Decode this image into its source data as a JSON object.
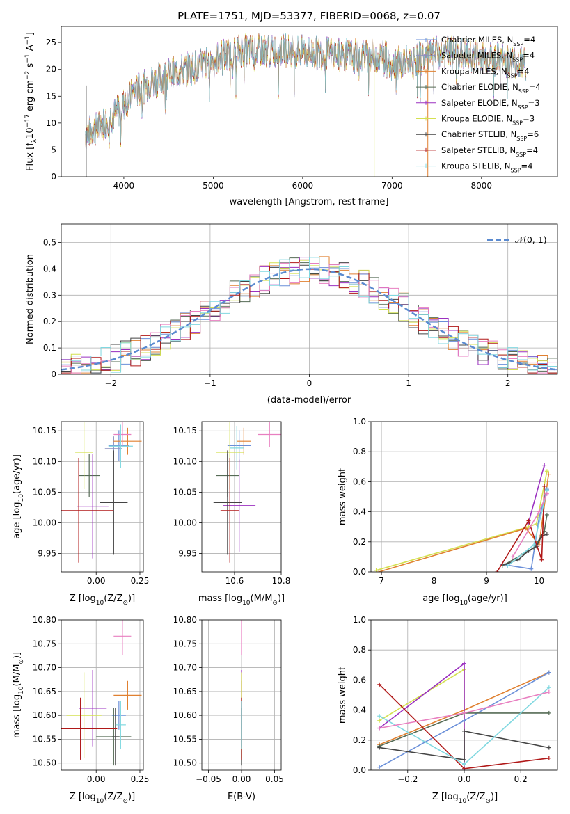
{
  "figure": {
    "title": "PLATE=1751, MJD=53377, FIBERID=0068, z=0.07"
  },
  "legend_labels": [
    {
      "name": "Chabrier MILES, N",
      "sub": "SSP",
      "tail": "=4",
      "color": "#6a8fd9"
    },
    {
      "name": "Salpeter MILES, N",
      "sub": "SSP",
      "tail": "=4",
      "color": "#8a8fbf"
    },
    {
      "name": "Kroupa MILES, N",
      "sub": "SSP",
      "tail": "=4",
      "color": "#e08030"
    },
    {
      "name": "Chabrier ELODIE, N",
      "sub": "SSP",
      "tail": "=4",
      "color": "#556b55"
    },
    {
      "name": "Salpeter ELODIE, N",
      "sub": "SSP",
      "tail": "=3",
      "color": "#9b30c0"
    },
    {
      "name": "Kroupa ELODIE, N",
      "sub": "SSP",
      "tail": "=3",
      "color": "#d4e050"
    },
    {
      "name": "Chabrier STELIB, N",
      "sub": "SSP",
      "tail": "=6",
      "color": "#444444"
    },
    {
      "name": "Salpeter STELIB, N",
      "sub": "SSP",
      "tail": "=4",
      "color": "#b01818"
    },
    {
      "name": "Kroupa STELIB, N",
      "sub": "SSP",
      "tail": "=4",
      "color": "#80d8e0"
    }
  ],
  "normal_legend": "𝒩(0, 1)",
  "chart_data": [
    {
      "type": "line",
      "id": "spectrum",
      "xlabel": "wavelength [Angstrom, rest frame]",
      "ylabel": "Flux [f",
      "xlim": [
        3300,
        8850
      ],
      "ylim": [
        0,
        28
      ],
      "xticks": [
        4000,
        5000,
        6000,
        7000,
        8000
      ],
      "yticks": [
        0,
        5,
        10,
        15,
        20,
        25
      ],
      "continuum": {
        "x": [
          3570,
          3700,
          3850,
          3950,
          4100,
          4300,
          4500,
          4700,
          4900,
          5100,
          5300,
          5500,
          5700,
          5900,
          6100,
          6300,
          6500,
          6700,
          6900,
          7100,
          7300,
          7500,
          7700,
          7900,
          8100,
          8300,
          8500
        ],
        "y": [
          8,
          9,
          11,
          12.5,
          15.5,
          17.5,
          19,
          20,
          21,
          22.5,
          23.5,
          23.5,
          23.5,
          23.5,
          23,
          23,
          22.5,
          22.5,
          22.5,
          21,
          22,
          23,
          23,
          22.5,
          22,
          21.5,
          21
        ]
      }
    },
    {
      "type": "histogram",
      "id": "residuals",
      "xlabel": "(data-model)/error",
      "ylabel": "Normed distribution",
      "xlim": [
        -2.5,
        2.5
      ],
      "ylim": [
        0,
        0.57
      ],
      "xticks": [
        -2,
        -1,
        0,
        1,
        2
      ],
      "yticks": [
        0.0,
        0.1,
        0.2,
        0.3,
        0.4,
        0.5
      ],
      "bin_width": 0.1,
      "reference": {
        "name": "𝒩(0, 1)",
        "mean": 0,
        "sigma": 1
      }
    },
    {
      "type": "scatter",
      "id": "age-vs-Z",
      "xlabel": "Z [log",
      "ylabel": "age  [log",
      "xlim": [
        -0.2,
        0.27
      ],
      "ylim": [
        9.92,
        10.165
      ],
      "xticks": [
        0.0,
        0.25
      ],
      "xticklabels": [
        "0.00",
        "0.25"
      ],
      "yticks": [
        9.95,
        10.0,
        10.05,
        10.1,
        10.15
      ],
      "yticklabels": [
        "9.95",
        "10.00",
        "10.05",
        "10.10",
        "10.15"
      ],
      "points": [
        {
          "x": 0.13,
          "y": 10.126,
          "xerr": 0.06,
          "yerr": 0.025,
          "color": "#6a8fd9"
        },
        {
          "x": 0.1,
          "y": 10.121,
          "xerr": 0.05,
          "yerr": 0.02,
          "color": "#8a8fbf"
        },
        {
          "x": 0.18,
          "y": 10.133,
          "xerr": 0.08,
          "yerr": 0.022,
          "color": "#e08030"
        },
        {
          "x": -0.04,
          "y": 10.077,
          "xerr": 0.06,
          "yerr": 0.035,
          "color": "#556b55"
        },
        {
          "x": -0.02,
          "y": 10.027,
          "xerr": 0.09,
          "yerr": 0.085,
          "color": "#9b30c0"
        },
        {
          "x": -0.07,
          "y": 10.115,
          "xerr": 0.05,
          "yerr": 0.06,
          "color": "#d4e050"
        },
        {
          "x": 0.1,
          "y": 10.033,
          "xerr": 0.08,
          "yerr": 0.085,
          "color": "#444444"
        },
        {
          "x": -0.1,
          "y": 10.02,
          "xerr": 0.2,
          "yerr": 0.085,
          "color": "#b01818"
        },
        {
          "x": 0.15,
          "y": 10.144,
          "xerr": 0.05,
          "yerr": 0.02,
          "color": "#e87fc0"
        },
        {
          "x": 0.14,
          "y": 10.125,
          "xerr": 0.07,
          "yerr": 0.035,
          "color": "#80d8e0"
        }
      ]
    },
    {
      "type": "scatter",
      "id": "age-vs-mass",
      "xlabel": "mass [log",
      "xlim": [
        10.46,
        10.8
      ],
      "ylim": [
        9.92,
        10.165
      ],
      "xticks": [
        10.6,
        10.8
      ],
      "xticklabels": [
        "10.6",
        "10.8"
      ],
      "yticks": [
        9.95,
        10.0,
        10.05,
        10.1,
        10.15
      ],
      "yticklabels": [
        "9.95",
        "10.00",
        "10.05",
        "10.10",
        "10.15"
      ],
      "points": [
        {
          "x": 10.62,
          "y": 10.126,
          "xerr": 0.05,
          "yerr": 0.025,
          "color": "#6a8fd9"
        },
        {
          "x": 10.64,
          "y": 10.133,
          "xerr": 0.03,
          "yerr": 0.022,
          "color": "#e08030"
        },
        {
          "x": 10.57,
          "y": 10.077,
          "xerr": 0.05,
          "yerr": 0.035,
          "color": "#556b55"
        },
        {
          "x": 10.62,
          "y": 10.028,
          "xerr": 0.07,
          "yerr": 0.075,
          "color": "#9b30c0"
        },
        {
          "x": 10.58,
          "y": 10.115,
          "xerr": 0.06,
          "yerr": 0.06,
          "color": "#d4e050"
        },
        {
          "x": 10.57,
          "y": 10.033,
          "xerr": 0.06,
          "yerr": 0.085,
          "color": "#444444"
        },
        {
          "x": 10.58,
          "y": 10.02,
          "xerr": 0.04,
          "yerr": 0.085,
          "color": "#b01818"
        },
        {
          "x": 10.75,
          "y": 10.144,
          "xerr": 0.05,
          "yerr": 0.02,
          "color": "#e87fc0"
        },
        {
          "x": 10.61,
          "y": 10.122,
          "xerr": 0.03,
          "yerr": 0.035,
          "color": "#80d8e0"
        }
      ]
    },
    {
      "type": "line",
      "id": "weight-vs-age",
      "xlabel": "age  [log",
      "ylabel": "mass weight",
      "xlim": [
        6.8,
        10.35
      ],
      "ylim": [
        0,
        1
      ],
      "xticks": [
        7,
        8,
        9,
        10
      ],
      "yticks": [
        0.0,
        0.2,
        0.4,
        0.6,
        0.8,
        1.0
      ],
      "yticklabels": [
        "0.0",
        "0.2",
        "0.4",
        "0.6",
        "0.8",
        "1.0"
      ],
      "series": [
        {
          "color": "#d4e050",
          "x": [
            6.9,
            9.8,
            9.95,
            10.15
          ],
          "y": [
            0.01,
            0.3,
            0.32,
            0.67
          ]
        },
        {
          "color": "#e08030",
          "x": [
            6.95,
            9.75,
            10.0,
            10.18
          ],
          "y": [
            0.0,
            0.29,
            0.18,
            0.65
          ]
        },
        {
          "color": "#9b30c0",
          "x": [
            9.8,
            10.1
          ],
          "y": [
            0.33,
            0.71
          ]
        },
        {
          "color": "#6a8fd9",
          "x": [
            9.3,
            9.85,
            10.0,
            10.15
          ],
          "y": [
            0.05,
            0.02,
            0.36,
            0.55
          ]
        },
        {
          "color": "#556b55",
          "x": [
            9.3,
            9.7,
            9.9,
            10.1,
            10.15
          ],
          "y": [
            0.04,
            0.12,
            0.16,
            0.27,
            0.38
          ]
        },
        {
          "color": "#444444",
          "x": [
            9.35,
            9.6,
            9.8,
            9.95,
            10.05,
            10.15
          ],
          "y": [
            0.05,
            0.08,
            0.14,
            0.17,
            0.24,
            0.25
          ]
        },
        {
          "color": "#b01818",
          "x": [
            9.2,
            9.8,
            10.05,
            10.1
          ],
          "y": [
            0.0,
            0.34,
            0.08,
            0.57
          ]
        },
        {
          "color": "#80d8e0",
          "x": [
            9.4,
            9.9,
            10.15
          ],
          "y": [
            0.04,
            0.18,
            0.54
          ]
        },
        {
          "color": "#e87fc0",
          "x": [
            9.5,
            10.0,
            10.15
          ],
          "y": [
            0.1,
            0.4,
            0.52
          ]
        }
      ]
    },
    {
      "type": "scatter",
      "id": "mass-vs-Z",
      "xlabel": "Z [log",
      "ylabel": "mass [log",
      "xlim": [
        -0.2,
        0.27
      ],
      "ylim": [
        10.485,
        10.8
      ],
      "xticks": [
        0.0,
        0.25
      ],
      "xticklabels": [
        "0.00",
        "0.25"
      ],
      "yticks": [
        10.5,
        10.55,
        10.6,
        10.65,
        10.7,
        10.75,
        10.8
      ],
      "yticklabels": [
        "10.50",
        "10.55",
        "10.60",
        "10.65",
        "10.70",
        "10.75",
        "10.80"
      ],
      "points": [
        {
          "x": 0.13,
          "y": 10.6,
          "xerr": 0.04,
          "yerr": 0.03,
          "color": "#6a8fd9"
        },
        {
          "x": 0.18,
          "y": 10.642,
          "xerr": 0.08,
          "yerr": 0.03,
          "color": "#e08030"
        },
        {
          "x": 0.1,
          "y": 10.555,
          "xerr": 0.1,
          "yerr": 0.06,
          "color": "#556b55"
        },
        {
          "x": -0.02,
          "y": 10.615,
          "xerr": 0.08,
          "yerr": 0.08,
          "color": "#9b30c0"
        },
        {
          "x": -0.07,
          "y": 10.6,
          "xerr": 0.1,
          "yerr": 0.09,
          "color": "#d4e050"
        },
        {
          "x": 0.11,
          "y": 10.555,
          "xerr": 0.02,
          "yerr": 0.06,
          "color": "#444444"
        },
        {
          "x": -0.09,
          "y": 10.572,
          "xerr": 0.21,
          "yerr": 0.065,
          "color": "#b01818"
        },
        {
          "x": 0.15,
          "y": 10.766,
          "xerr": 0.05,
          "yerr": 0.04,
          "color": "#e87fc0"
        },
        {
          "x": 0.14,
          "y": 10.58,
          "xerr": 0.03,
          "yerr": 0.05,
          "color": "#80d8e0"
        }
      ]
    },
    {
      "type": "scatter",
      "id": "mass-vs-EBV",
      "xlabel": "E(B-V)",
      "xlim": [
        -0.06,
        0.06
      ],
      "ylim": [
        10.485,
        10.8
      ],
      "xticks": [
        -0.05,
        0.0,
        0.05
      ],
      "xticklabels": [
        "−0.05",
        "0.00",
        "0.05"
      ],
      "yticks": [
        10.5,
        10.55,
        10.6,
        10.65,
        10.7,
        10.75,
        10.8
      ],
      "yticklabels": [
        "10.50",
        "10.55",
        "10.60",
        "10.65",
        "10.70",
        "10.75",
        "10.80"
      ],
      "points": [
        {
          "x": 0,
          "y": 10.6,
          "yerr": 0.03,
          "color": "#6a8fd9"
        },
        {
          "x": 0,
          "y": 10.642,
          "yerr": 0.03,
          "color": "#e08030"
        },
        {
          "x": 0,
          "y": 10.555,
          "yerr": 0.06,
          "color": "#556b55"
        },
        {
          "x": 0,
          "y": 10.615,
          "yerr": 0.08,
          "color": "#9b30c0"
        },
        {
          "x": 0,
          "y": 10.6,
          "yerr": 0.09,
          "color": "#d4e050"
        },
        {
          "x": 0,
          "y": 10.555,
          "yerr": 0.06,
          "color": "#444444"
        },
        {
          "x": 0,
          "y": 10.572,
          "yerr": 0.065,
          "color": "#b01818"
        },
        {
          "x": 0,
          "y": 10.766,
          "yerr": 0.04,
          "color": "#e87fc0"
        },
        {
          "x": 0,
          "y": 10.58,
          "yerr": 0.05,
          "color": "#80d8e0"
        }
      ]
    },
    {
      "type": "line",
      "id": "weight-vs-Z",
      "xlabel": "Z [log",
      "ylabel": "mass weight",
      "xlim": [
        -0.33,
        0.33
      ],
      "ylim": [
        0,
        1
      ],
      "xticks": [
        -0.2,
        0.0,
        0.2
      ],
      "xticklabels": [
        "−0.2",
        "0.0",
        "0.2"
      ],
      "yticks": [
        0.0,
        0.2,
        0.4,
        0.6,
        0.8,
        1.0
      ],
      "yticklabels": [
        "0.0",
        "0.2",
        "0.4",
        "0.6",
        "0.8",
        "1.0"
      ],
      "series": [
        {
          "color": "#d4e050",
          "x": [
            -0.3,
            0.0,
            0.0
          ],
          "y": [
            0.33,
            0.67,
            0.0
          ]
        },
        {
          "color": "#e08030",
          "x": [
            -0.3,
            0.0,
            0.3
          ],
          "y": [
            0.17,
            0.4,
            0.65
          ]
        },
        {
          "color": "#9b30c0",
          "x": [
            -0.3,
            0.0,
            0.0
          ],
          "y": [
            0.28,
            0.71,
            0.0
          ]
        },
        {
          "color": "#6a8fd9",
          "x": [
            -0.3,
            0.0,
            0.3
          ],
          "y": [
            0.02,
            0.33,
            0.65
          ]
        },
        {
          "color": "#556b55",
          "x": [
            -0.3,
            0.0,
            0.3
          ],
          "y": [
            0.16,
            0.38,
            0.38
          ]
        },
        {
          "color": "#444444",
          "x": [
            -0.3,
            0.0,
            0.0,
            0.3
          ],
          "y": [
            0.15,
            0.07,
            0.26,
            0.15
          ]
        },
        {
          "color": "#b01818",
          "x": [
            -0.3,
            0.0,
            0.3
          ],
          "y": [
            0.57,
            0.01,
            0.08
          ]
        },
        {
          "color": "#80d8e0",
          "x": [
            -0.3,
            0.0,
            0.3
          ],
          "y": [
            0.36,
            0.04,
            0.55
          ]
        },
        {
          "color": "#e87fc0",
          "x": [
            -0.3,
            0.0,
            0.3
          ],
          "y": [
            0.28,
            0.38,
            0.52
          ]
        }
      ]
    }
  ]
}
